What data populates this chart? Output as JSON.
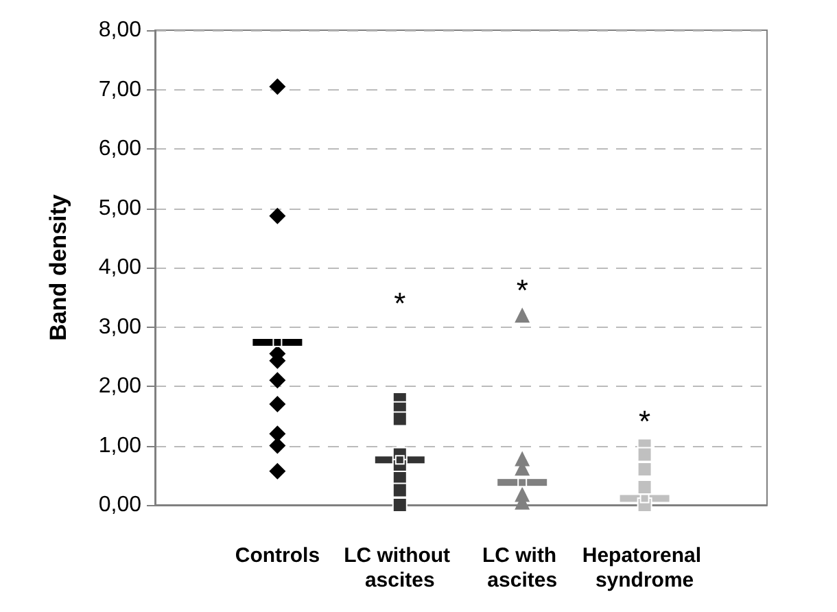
{
  "chart_data": {
    "type": "scatter",
    "ylabel": "Band density",
    "categories": [
      null,
      "Controls",
      "LC without ascites",
      "LC with ascites",
      "Hepatorenal syndrome",
      null
    ],
    "series": [
      {
        "color": "#000000",
        "marker": "diamond",
        "x": [
          "Controls",
          "Controls",
          "Controls",
          "Controls",
          "Controls",
          "Controls",
          "Controls",
          "Controls",
          "Controls"
        ],
        "values": [
          7.05,
          4.87,
          2.55,
          2.43,
          2.1,
          1.7,
          1.2,
          1.0,
          0.57
        ]
      },
      {
        "color": "#333333",
        "marker": "square",
        "x": [
          "LC without ascites",
          "LC without ascites",
          "LC without ascites",
          "LC without ascites",
          "LC without ascites",
          "LC without ascites",
          "LC without ascites",
          "LC without ascites",
          "LC without ascites"
        ],
        "values": [
          1.78,
          1.62,
          1.45,
          0.85,
          0.65,
          0.45,
          0.25,
          null,
          0.0
        ]
      },
      {
        "color": "#808080",
        "marker": "triangle",
        "x": [
          "LC with ascites",
          "LC with ascites",
          "LC with ascites",
          "LC with ascites",
          "LC with ascites",
          "LC with ascites"
        ],
        "values": [
          3.2,
          0.78,
          0.62,
          null,
          0.18,
          0.05
        ]
      },
      {
        "color": "#c0c0c0",
        "marker": "square",
        "x": [
          "Hepatorenal syndrome",
          "Hepatorenal syndrome",
          "Hepatorenal syndrome",
          "Hepatorenal syndrome",
          "Hepatorenal syndrome",
          "Hepatorenal syndrome"
        ],
        "values": [
          1.0,
          0.85,
          0.6,
          0.3,
          null,
          0.0
        ]
      },
      {
        "marker": "square",
        "colors": [
          "#000000",
          "#333333",
          "#808080",
          "#c0c0c0"
        ],
        "x": [
          "Controls",
          "LC without ascites",
          "LC with ascites",
          "Hepatorenal syndrome"
        ],
        "values": [
          2.74,
          0.76,
          0.38,
          0.11
        ]
      }
    ],
    "ylim": [
      0,
      8
    ],
    "yticks": [
      {
        "value": 0,
        "label": "0,00"
      },
      {
        "value": 1,
        "label": "1,00"
      },
      {
        "value": 2,
        "label": "2,00"
      },
      {
        "value": 3,
        "label": "3,00"
      },
      {
        "value": 4,
        "label": "4,00"
      },
      {
        "value": 5,
        "label": "5,00"
      },
      {
        "value": 6,
        "label": "6,00"
      },
      {
        "value": 7,
        "label": "7,00"
      },
      {
        "value": 8,
        "label": "8,00"
      }
    ],
    "grid": "y",
    "annotations": [
      "*",
      "*",
      "*"
    ]
  }
}
